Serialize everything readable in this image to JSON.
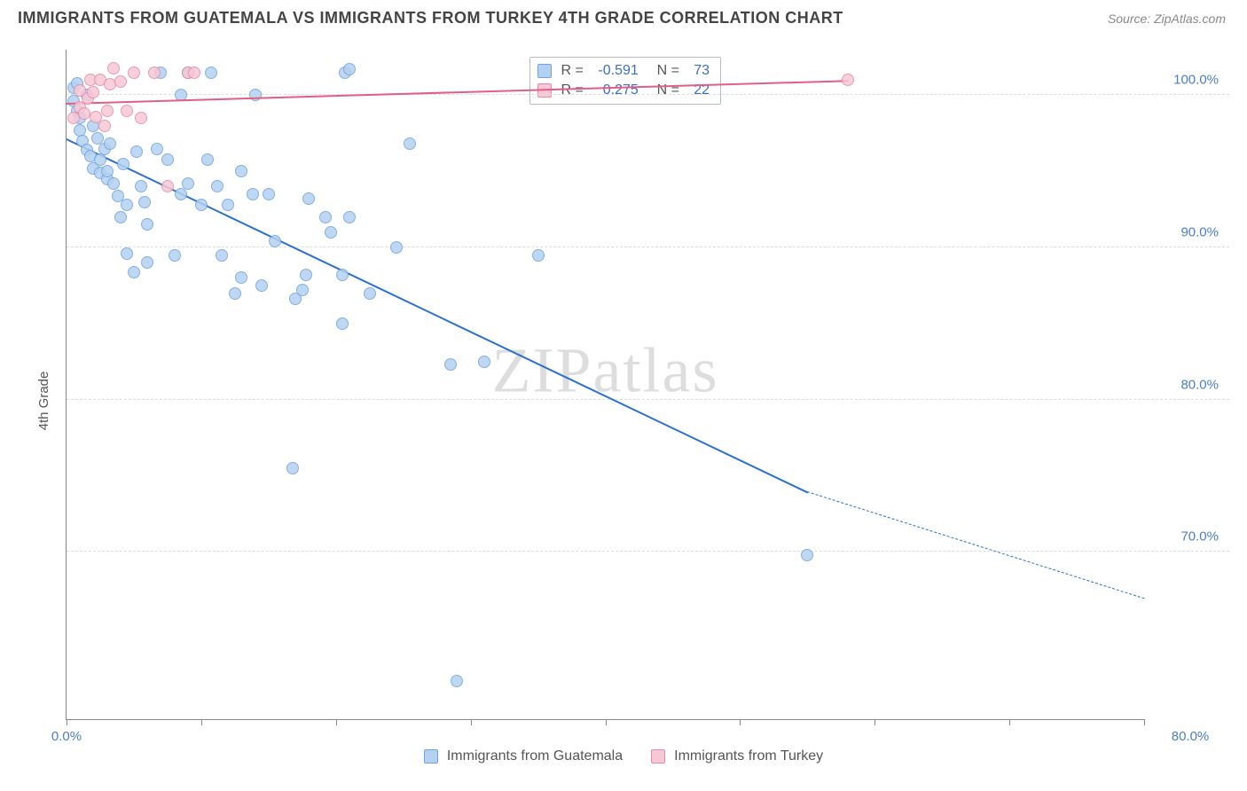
{
  "title": "IMMIGRANTS FROM GUATEMALA VS IMMIGRANTS FROM TURKEY 4TH GRADE CORRELATION CHART",
  "source": "Source: ZipAtlas.com",
  "watermark": "ZIPatlas",
  "y_axis_label": "4th Grade",
  "chart": {
    "type": "scatter",
    "background_color": "#ffffff",
    "grid_color": "#dcdcdc",
    "axis_color": "#888888",
    "tick_label_color": "#4a7ec9",
    "xlim": [
      0,
      80
    ],
    "ylim": [
      59,
      103
    ],
    "x_ticks": [
      0,
      10,
      20,
      30,
      40,
      50,
      60,
      70,
      80
    ],
    "x_tick_labels": {
      "0": "0.0%",
      "80": "80.0%"
    },
    "y_ticks": [
      70,
      80,
      90,
      100
    ],
    "y_tick_labels": {
      "70": "70.0%",
      "80": "80.0%",
      "90": "90.0%",
      "100": "100.0%"
    },
    "series": [
      {
        "name": "Immigrants from Guatemala",
        "marker_fill": "#b3d1f0",
        "marker_stroke": "#6fa3df",
        "line_color": "#2b6fd1",
        "marker_size_px": 14,
        "R": "-0.591",
        "N": "73",
        "regression": {
          "x1": 0,
          "y1": 97.2,
          "x2": 55,
          "y2": 74.0,
          "dashed_to_x": 80,
          "dashed_to_y": 67.0
        },
        "points": [
          {
            "x": 0.5,
            "y": 100.5
          },
          {
            "x": 0.5,
            "y": 99.6
          },
          {
            "x": 0.8,
            "y": 100.8
          },
          {
            "x": 0.8,
            "y": 99.0
          },
          {
            "x": 1.0,
            "y": 98.5
          },
          {
            "x": 1.0,
            "y": 97.7
          },
          {
            "x": 1.2,
            "y": 97.0
          },
          {
            "x": 1.5,
            "y": 100.0
          },
          {
            "x": 1.5,
            "y": 96.4
          },
          {
            "x": 1.8,
            "y": 96.0
          },
          {
            "x": 2.0,
            "y": 98.0
          },
          {
            "x": 2.0,
            "y": 95.2
          },
          {
            "x": 2.3,
            "y": 97.2
          },
          {
            "x": 2.5,
            "y": 95.8
          },
          {
            "x": 2.5,
            "y": 94.9
          },
          {
            "x": 2.8,
            "y": 96.5
          },
          {
            "x": 3.0,
            "y": 94.5
          },
          {
            "x": 3.0,
            "y": 95.0
          },
          {
            "x": 3.2,
            "y": 96.8
          },
          {
            "x": 3.5,
            "y": 94.2
          },
          {
            "x": 3.8,
            "y": 93.4
          },
          {
            "x": 4.0,
            "y": 92.0
          },
          {
            "x": 4.2,
            "y": 95.5
          },
          {
            "x": 4.5,
            "y": 92.8
          },
          {
            "x": 4.5,
            "y": 89.6
          },
          {
            "x": 5.0,
            "y": 88.4
          },
          {
            "x": 5.2,
            "y": 96.3
          },
          {
            "x": 5.5,
            "y": 94.0
          },
          {
            "x": 5.8,
            "y": 93.0
          },
          {
            "x": 6.0,
            "y": 91.5
          },
          {
            "x": 6.0,
            "y": 89.0
          },
          {
            "x": 6.7,
            "y": 96.5
          },
          {
            "x": 7.0,
            "y": 101.5
          },
          {
            "x": 7.5,
            "y": 95.8
          },
          {
            "x": 8.0,
            "y": 89.5
          },
          {
            "x": 8.5,
            "y": 93.5
          },
          {
            "x": 8.5,
            "y": 100.0
          },
          {
            "x": 9.0,
            "y": 101.5
          },
          {
            "x": 9.0,
            "y": 94.2
          },
          {
            "x": 10.0,
            "y": 92.8
          },
          {
            "x": 10.5,
            "y": 95.8
          },
          {
            "x": 10.7,
            "y": 101.5
          },
          {
            "x": 11.2,
            "y": 94.0
          },
          {
            "x": 11.5,
            "y": 89.5
          },
          {
            "x": 12.0,
            "y": 92.8
          },
          {
            "x": 12.5,
            "y": 87.0
          },
          {
            "x": 13.0,
            "y": 95.0
          },
          {
            "x": 13.0,
            "y": 88.0
          },
          {
            "x": 13.8,
            "y": 93.5
          },
          {
            "x": 14.0,
            "y": 100.0
          },
          {
            "x": 14.5,
            "y": 87.5
          },
          {
            "x": 15.0,
            "y": 93.5
          },
          {
            "x": 15.5,
            "y": 90.4
          },
          {
            "x": 16.8,
            "y": 75.5
          },
          {
            "x": 17.0,
            "y": 86.6
          },
          {
            "x": 17.5,
            "y": 87.2
          },
          {
            "x": 17.8,
            "y": 88.2
          },
          {
            "x": 18.0,
            "y": 93.2
          },
          {
            "x": 19.2,
            "y": 92.0
          },
          {
            "x": 19.6,
            "y": 91.0
          },
          {
            "x": 20.5,
            "y": 88.2
          },
          {
            "x": 20.5,
            "y": 85.0
          },
          {
            "x": 20.7,
            "y": 101.5
          },
          {
            "x": 21.0,
            "y": 92.0
          },
          {
            "x": 21.0,
            "y": 101.7
          },
          {
            "x": 22.5,
            "y": 87.0
          },
          {
            "x": 24.5,
            "y": 90.0
          },
          {
            "x": 25.5,
            "y": 96.8
          },
          {
            "x": 28.5,
            "y": 82.3
          },
          {
            "x": 29.0,
            "y": 61.5
          },
          {
            "x": 31.0,
            "y": 82.5
          },
          {
            "x": 35.0,
            "y": 89.5
          },
          {
            "x": 55.0,
            "y": 69.8
          }
        ]
      },
      {
        "name": "Immigrants from Turkey",
        "marker_fill": "#f6c8d6",
        "marker_stroke": "#e789a8",
        "line_color": "#e15f86",
        "marker_size_px": 14,
        "R": "0.275",
        "N": "22",
        "regression": {
          "x1": 0,
          "y1": 99.5,
          "x2": 58,
          "y2": 101.0,
          "dashed_to_x": 58,
          "dashed_to_y": 101.0
        },
        "points": [
          {
            "x": 0.5,
            "y": 98.5
          },
          {
            "x": 1.0,
            "y": 99.2
          },
          {
            "x": 1.0,
            "y": 100.3
          },
          {
            "x": 1.3,
            "y": 98.8
          },
          {
            "x": 1.6,
            "y": 99.8
          },
          {
            "x": 1.8,
            "y": 101.0
          },
          {
            "x": 2.0,
            "y": 100.2
          },
          {
            "x": 2.2,
            "y": 98.6
          },
          {
            "x": 2.5,
            "y": 101.0
          },
          {
            "x": 2.8,
            "y": 98.0
          },
          {
            "x": 3.0,
            "y": 99.0
          },
          {
            "x": 3.2,
            "y": 100.7
          },
          {
            "x": 3.5,
            "y": 101.8
          },
          {
            "x": 4.0,
            "y": 100.9
          },
          {
            "x": 4.5,
            "y": 99.0
          },
          {
            "x": 5.0,
            "y": 101.5
          },
          {
            "x": 5.5,
            "y": 98.5
          },
          {
            "x": 6.5,
            "y": 101.5
          },
          {
            "x": 7.5,
            "y": 94.0
          },
          {
            "x": 9.0,
            "y": 101.5
          },
          {
            "x": 9.5,
            "y": 101.5
          },
          {
            "x": 58.0,
            "y": 101.0
          }
        ]
      }
    ],
    "legend_top": {
      "label_R": "R =",
      "label_N": "N ="
    },
    "legend_bottom": [
      {
        "swatch_fill": "#b3d1f0",
        "swatch_stroke": "#6fa3df",
        "label": "Immigrants from Guatemala"
      },
      {
        "swatch_fill": "#f6c8d6",
        "swatch_stroke": "#e789a8",
        "label": "Immigrants from Turkey"
      }
    ]
  }
}
